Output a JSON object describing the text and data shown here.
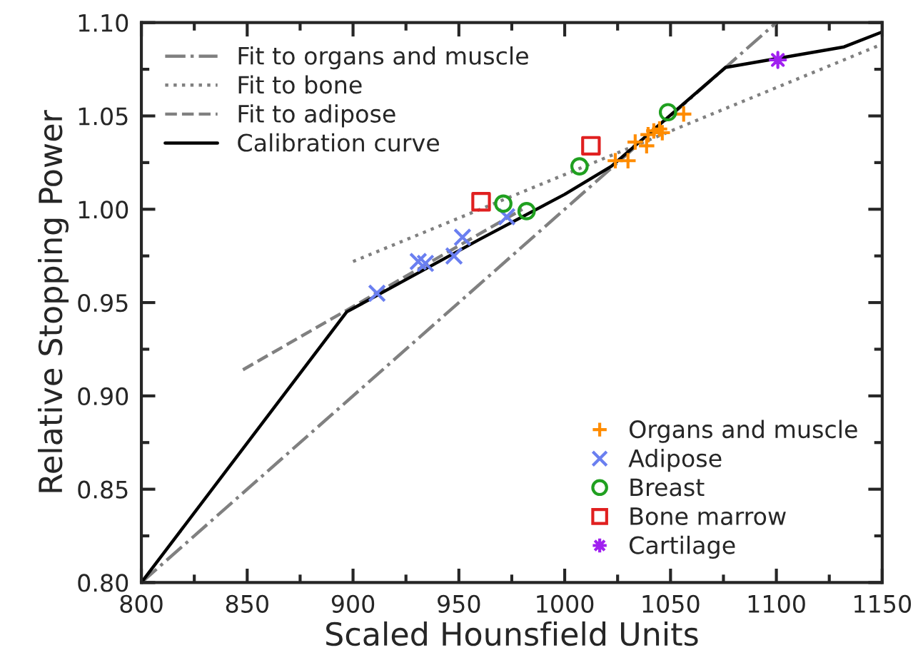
{
  "chart_data": {
    "type": "scatter",
    "xlabel": "Scaled Hounsfield Units",
    "ylabel": "Relative Stopping Power",
    "xlim": [
      800,
      1150
    ],
    "xticks": [
      800,
      850,
      900,
      950,
      1000,
      1050,
      1100,
      1150
    ],
    "ylim": [
      0.8,
      1.1
    ],
    "yticks": [
      {
        "value": 0.8,
        "label": "0.80"
      },
      {
        "value": 0.85,
        "label": "0.85"
      },
      {
        "value": 0.9,
        "label": "0.90"
      },
      {
        "value": 0.95,
        "label": "0.95"
      },
      {
        "value": 1.0,
        "label": "1.00"
      },
      {
        "value": 1.05,
        "label": "1.05"
      },
      {
        "value": 1.1,
        "label": "1.10"
      }
    ],
    "grid": false,
    "legend": [
      "top left",
      "bottom right"
    ],
    "series": [
      {
        "name": "Fit to organs and muscle",
        "type": "line",
        "line_style": "dashdot",
        "color": "#808080",
        "x": [
          800,
          1100
        ],
        "values": [
          0.8,
          1.1
        ]
      },
      {
        "name": "Fit to bone",
        "type": "line",
        "line_style": "dotted",
        "color": "#808080",
        "x": [
          900,
          1149
        ],
        "values": [
          0.972,
          1.088
        ]
      },
      {
        "name": "Fit to adipose",
        "type": "line",
        "line_style": "dashed",
        "color": "#808080",
        "x": [
          848,
          980
        ],
        "values": [
          0.914,
          1.0
        ]
      },
      {
        "name": "Calibration curve",
        "type": "line",
        "line_style": "solid",
        "color": "#000000",
        "x": [
          800,
          897,
          960,
          1000,
          1022,
          1076,
          1132,
          1150
        ],
        "values": [
          0.8,
          0.945,
          0.984,
          1.008,
          1.023,
          1.076,
          1.087,
          1.095
        ]
      },
      {
        "name": "Organs and muscle",
        "marker": "cross",
        "color": "#ff8c00",
        "x": [
          1023.9,
          1029.9,
          1033.3,
          1038.7,
          1039.4,
          1042.1,
          1044.8,
          1046.1,
          1056.2
        ],
        "values": [
          1.026,
          1.026,
          1.036,
          1.034,
          1.04,
          1.042,
          1.043,
          1.041,
          1.051
        ]
      },
      {
        "name": "Adipose",
        "marker": "x",
        "color": "#6a7ff0",
        "x": [
          911.3,
          930.8,
          934.2,
          947.7,
          951.7,
          972.6
        ],
        "values": [
          0.955,
          0.972,
          0.971,
          0.975,
          0.985,
          0.996
        ]
      },
      {
        "name": "Breast",
        "marker": "circle",
        "color": "#20a020",
        "x": [
          971,
          982,
          1007,
          1048.8
        ],
        "values": [
          1.003,
          0.999,
          1.023,
          1.052
        ]
      },
      {
        "name": "Bone marrow",
        "marker": "square",
        "color": "#e02020",
        "x": [
          960.5,
          1012.4
        ],
        "values": [
          1.004,
          1.034
        ]
      },
      {
        "name": "Cartilage",
        "marker": "star",
        "color": "#a020f0",
        "x": [
          1100.7
        ],
        "values": [
          1.08
        ]
      }
    ]
  }
}
